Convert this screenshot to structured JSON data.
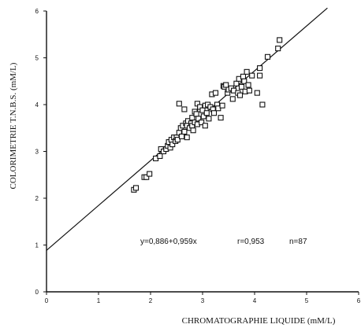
{
  "chart_data": {
    "type": "scatter",
    "title": "",
    "xlabel": "CHROMATOGRAPHIE LIQUIDE  (mM/L)",
    "ylabel": "COLORIMETRIE  T.N.B.S.  (mM/L)",
    "xlim": [
      0,
      6
    ],
    "ylim": [
      0,
      6
    ],
    "xticks": [
      "0",
      "1",
      "2",
      "3",
      "4",
      "5",
      "6"
    ],
    "yticks": [
      "0",
      "1",
      "2",
      "3",
      "4",
      "5",
      "6"
    ],
    "grid": false,
    "marker": "open-square",
    "regression": {
      "intercept": 0.886,
      "slope": 0.959,
      "x_range": [
        0,
        5.4
      ]
    },
    "annotations": {
      "equation": "y=0,886+0,959x",
      "r": "r=0,953",
      "n": "n=87"
    },
    "points": [
      [
        1.68,
        2.18
      ],
      [
        1.72,
        2.22
      ],
      [
        1.88,
        2.45
      ],
      [
        1.92,
        2.45
      ],
      [
        1.98,
        2.52
      ],
      [
        2.1,
        2.85
      ],
      [
        2.18,
        2.9
      ],
      [
        2.2,
        3.05
      ],
      [
        2.25,
        3.0
      ],
      [
        2.3,
        3.05
      ],
      [
        2.33,
        3.12
      ],
      [
        2.35,
        3.2
      ],
      [
        2.38,
        3.08
      ],
      [
        2.4,
        3.25
      ],
      [
        2.42,
        3.15
      ],
      [
        2.45,
        3.3
      ],
      [
        2.48,
        3.22
      ],
      [
        2.5,
        3.3
      ],
      [
        2.52,
        3.25
      ],
      [
        2.55,
        3.4
      ],
      [
        2.55,
        4.02
      ],
      [
        2.58,
        3.5
      ],
      [
        2.6,
        3.32
      ],
      [
        2.62,
        3.55
      ],
      [
        2.65,
        3.9
      ],
      [
        2.65,
        3.42
      ],
      [
        2.68,
        3.6
      ],
      [
        2.7,
        3.3
      ],
      [
        2.7,
        3.55
      ],
      [
        2.72,
        3.65
      ],
      [
        2.75,
        3.5
      ],
      [
        2.78,
        3.6
      ],
      [
        2.8,
        3.55
      ],
      [
        2.8,
        3.72
      ],
      [
        2.82,
        3.45
      ],
      [
        2.85,
        3.85
      ],
      [
        2.85,
        3.62
      ],
      [
        2.88,
        3.8
      ],
      [
        2.9,
        4.02
      ],
      [
        2.9,
        3.58
      ],
      [
        2.92,
        3.7
      ],
      [
        2.95,
        3.9
      ],
      [
        2.95,
        3.95
      ],
      [
        2.98,
        3.62
      ],
      [
        3.0,
        3.88
      ],
      [
        3.02,
        3.75
      ],
      [
        3.05,
        3.98
      ],
      [
        3.05,
        3.55
      ],
      [
        3.08,
        3.82
      ],
      [
        3.1,
        4.0
      ],
      [
        3.12,
        3.7
      ],
      [
        3.15,
        3.95
      ],
      [
        3.18,
        4.22
      ],
      [
        3.2,
        3.9
      ],
      [
        3.22,
        3.82
      ],
      [
        3.25,
        4.25
      ],
      [
        3.28,
        4.0
      ],
      [
        3.3,
        3.92
      ],
      [
        3.35,
        3.72
      ],
      [
        3.38,
        3.98
      ],
      [
        3.4,
        4.4
      ],
      [
        3.42,
        4.38
      ],
      [
        3.45,
        4.42
      ],
      [
        3.48,
        4.25
      ],
      [
        3.5,
        4.32
      ],
      [
        3.55,
        4.35
      ],
      [
        3.6,
        4.3
      ],
      [
        3.65,
        4.45
      ],
      [
        3.68,
        4.25
      ],
      [
        3.7,
        4.55
      ],
      [
        3.72,
        4.2
      ],
      [
        3.75,
        4.38
      ],
      [
        3.78,
        4.6
      ],
      [
        3.8,
        4.5
      ],
      [
        3.82,
        4.28
      ],
      [
        3.85,
        4.7
      ],
      [
        3.88,
        4.42
      ],
      [
        3.9,
        4.3
      ],
      [
        3.95,
        4.62
      ],
      [
        4.05,
        4.25
      ],
      [
        4.1,
        4.78
      ],
      [
        4.1,
        4.62
      ],
      [
        4.15,
        4.0
      ],
      [
        4.25,
        5.02
      ],
      [
        4.45,
        5.2
      ],
      [
        4.48,
        5.38
      ],
      [
        3.58,
        4.12
      ]
    ]
  }
}
